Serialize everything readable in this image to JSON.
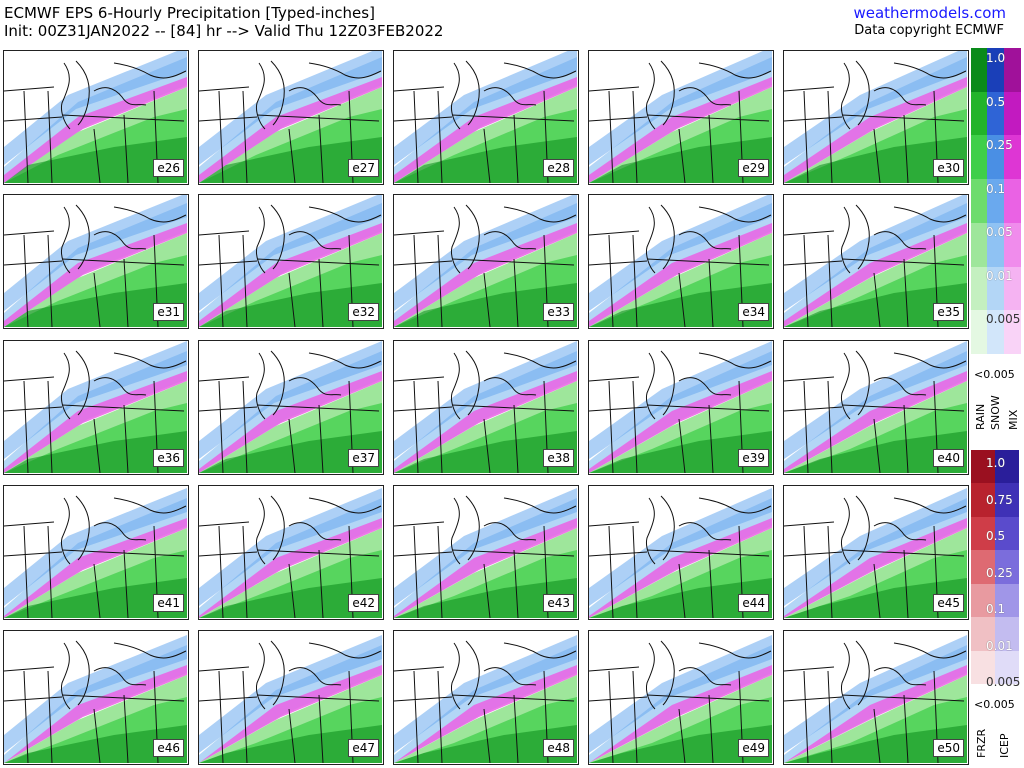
{
  "header": {
    "title": "ECMWF EPS 6-Hourly Precipitation [Typed-inches]",
    "subtitle": "Init: 00Z31JAN2022 -- [84] hr --> Valid Thu 12Z03FEB2022",
    "site": "weathermodels.com",
    "copyright": "Data copyright ECMWF"
  },
  "members": [
    "e26",
    "e27",
    "e28",
    "e29",
    "e30",
    "e31",
    "e32",
    "e33",
    "e34",
    "e35",
    "e36",
    "e37",
    "e38",
    "e39",
    "e40",
    "e41",
    "e42",
    "e43",
    "e44",
    "e45",
    "e46",
    "e47",
    "e48",
    "e49",
    "e50"
  ],
  "legend_top": {
    "ticks": [
      "1.0",
      "0.5",
      "0.25",
      "0.1",
      "0.05",
      "0.01",
      "0.005"
    ],
    "below": "<0.005",
    "types": [
      "RAIN",
      "SNOW",
      "MIX"
    ],
    "colors": {
      "rain": [
        "#0a8a1a",
        "#22b42a",
        "#3fcf4a",
        "#6ddc6d",
        "#9ee69b",
        "#c4f0c0",
        "#e4f8e2"
      ],
      "snow": [
        "#1a3fb8",
        "#2f64d6",
        "#4a8fe4",
        "#6aa9ee",
        "#8fc2f3",
        "#b3d6f6",
        "#d2e6fa"
      ],
      "mix": [
        "#a0119a",
        "#c21ac0",
        "#de36d4",
        "#ea62e4",
        "#f08cec",
        "#f5b3f2",
        "#f9d3f7"
      ]
    }
  },
  "legend_bottom": {
    "ticks": [
      "1.0",
      "0.75",
      "0.5",
      "0.25",
      "0.1",
      "0.01",
      "0.005"
    ],
    "below": "<0.005",
    "types": [
      "FRZR",
      "ICEP"
    ],
    "colors": {
      "frzr": [
        "#9a1020",
        "#b8222e",
        "#cf3d48",
        "#de6a72",
        "#e89aa0",
        "#f0c0c4",
        "#f8e0e2"
      ],
      "icep": [
        "#2a1e9a",
        "#3f31b6",
        "#5a4bcc",
        "#7b6ddc",
        "#a096e8",
        "#c3bcf0",
        "#e0dcf8"
      ]
    }
  }
}
